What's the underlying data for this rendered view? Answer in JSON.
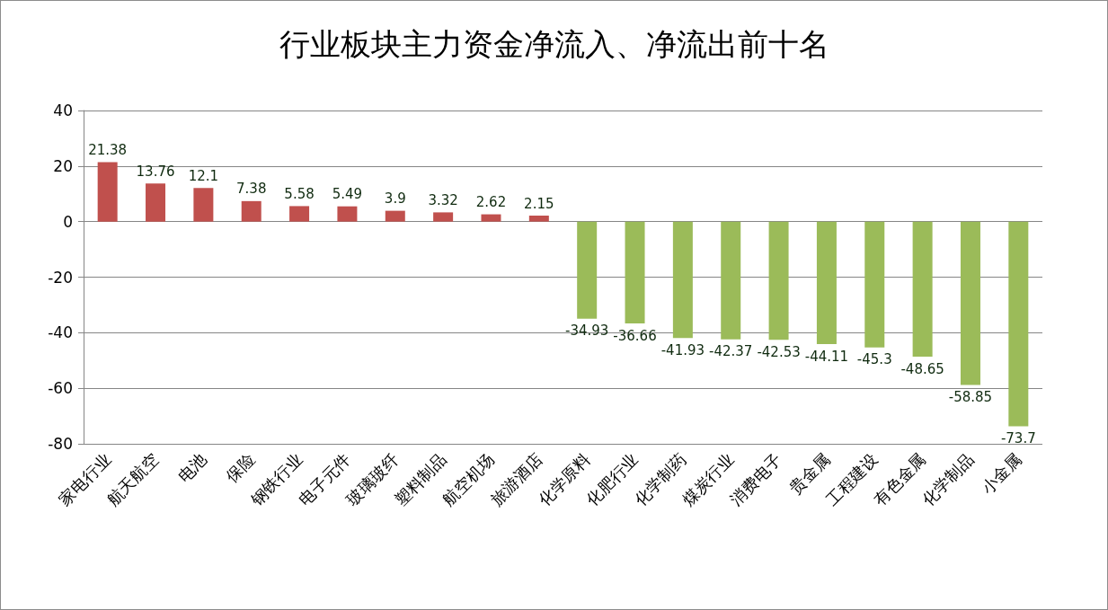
{
  "chart_data": {
    "type": "bar",
    "title": "行业板块主力资金净流入、净流出前十名",
    "categories": [
      "家电行业",
      "航天航空",
      "电池",
      "保险",
      "钢铁行业",
      "电子元件",
      "玻璃玻纤",
      "塑料制品",
      "航空机场",
      "旅游酒店",
      "化学原料",
      "化肥行业",
      "化学制药",
      "煤炭行业",
      "消费电子",
      "贵金属",
      "工程建设",
      "有色金属",
      "化学制品",
      "小金属"
    ],
    "values": [
      21.38,
      13.76,
      12.1,
      7.38,
      5.58,
      5.49,
      3.9,
      3.32,
      2.62,
      2.15,
      -34.93,
      -36.66,
      -41.93,
      -42.37,
      -42.53,
      -44.11,
      -45.3,
      -48.65,
      -58.85,
      -73.7
    ],
    "colors": [
      "#c0504d",
      "#c0504d",
      "#c0504d",
      "#c0504d",
      "#c0504d",
      "#c0504d",
      "#c0504d",
      "#c0504d",
      "#c0504d",
      "#c0504d",
      "#9bbb59",
      "#9bbb59",
      "#9bbb59",
      "#9bbb59",
      "#9bbb59",
      "#9bbb59",
      "#9bbb59",
      "#9bbb59",
      "#9bbb59",
      "#9bbb59"
    ],
    "ylim": [
      -80,
      40
    ],
    "yticks": [
      -80,
      -60,
      -40,
      -20,
      0,
      20,
      40
    ],
    "grid": "y",
    "data_labels": true
  }
}
